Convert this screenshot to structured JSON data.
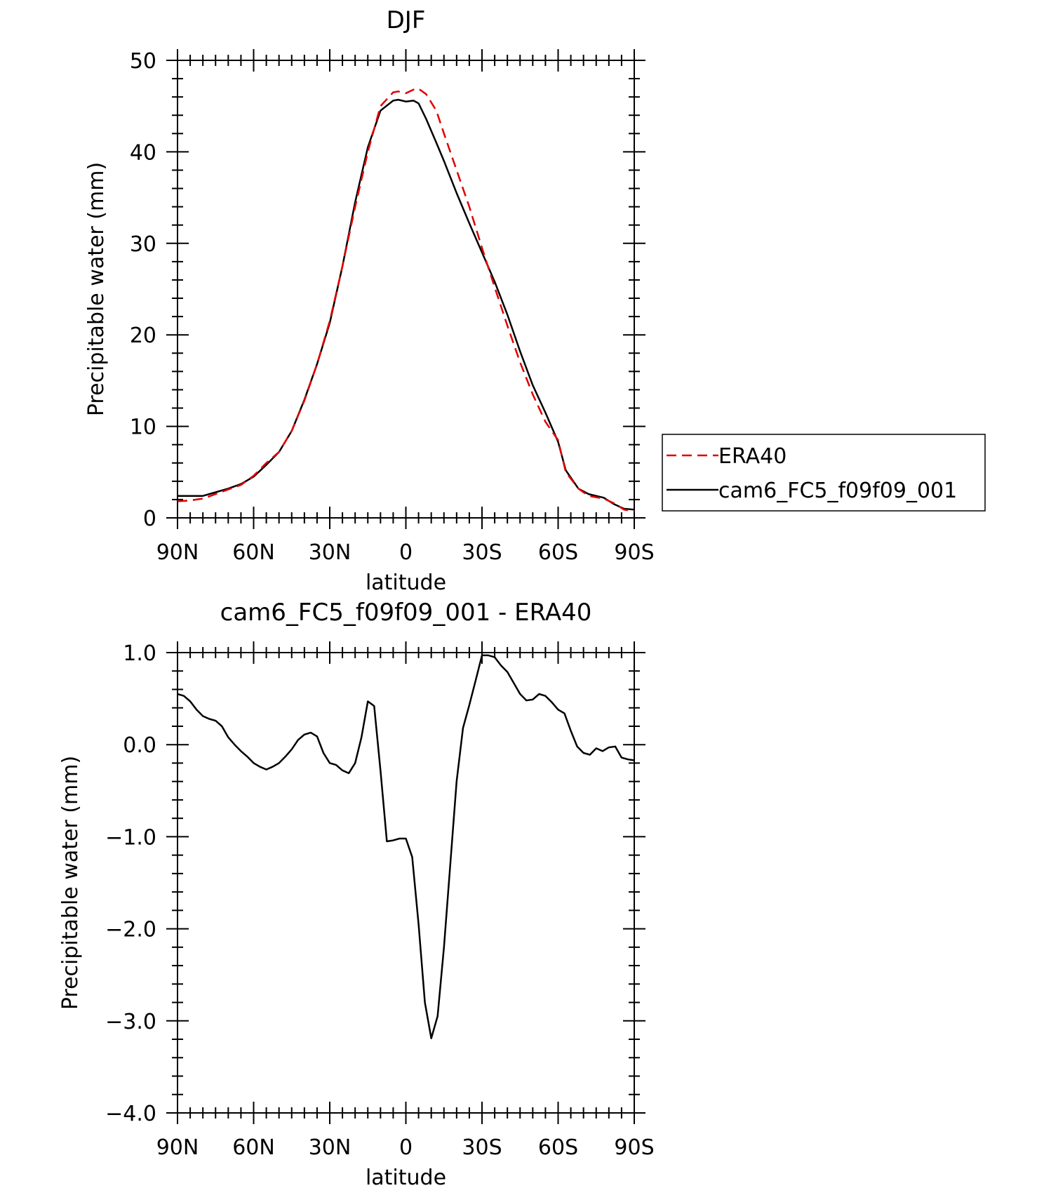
{
  "chart_data": [
    {
      "type": "line",
      "title": "DJF",
      "xlabel": "latitude",
      "ylabel": "Precipitable water (mm)",
      "xlim": [
        90,
        -90
      ],
      "ylim": [
        0,
        50
      ],
      "x_tick_values": [
        90,
        60,
        30,
        0,
        -30,
        -60,
        -90
      ],
      "x_tick_labels": [
        "90N",
        "60N",
        "30N",
        "0",
        "30S",
        "60S",
        "90S"
      ],
      "y_tick_values": [
        0,
        10,
        20,
        30,
        40,
        50
      ],
      "y_tick_labels": [
        "0",
        "10",
        "20",
        "30",
        "40",
        "50"
      ],
      "grid": false,
      "legend_position": "right",
      "series": [
        {
          "name": "ERA40",
          "color": "#e00000",
          "dash": true,
          "points": [
            [
              90,
              1.8
            ],
            [
              85,
              1.9
            ],
            [
              80,
              2.1
            ],
            [
              75,
              2.6
            ],
            [
              70,
              3.1
            ],
            [
              65,
              3.6
            ],
            [
              60,
              4.6
            ],
            [
              55,
              6.0
            ],
            [
              50,
              7.2
            ],
            [
              45,
              9.5
            ],
            [
              40,
              12.8
            ],
            [
              35,
              16.8
            ],
            [
              30,
              21.5
            ],
            [
              25,
              27.5
            ],
            [
              20,
              34.0
            ],
            [
              15,
              40.0
            ],
            [
              10,
              45.0
            ],
            [
              5,
              46.5
            ],
            [
              3,
              46.6
            ],
            [
              0,
              46.4
            ],
            [
              -3,
              46.8
            ],
            [
              -5,
              46.9
            ],
            [
              -8,
              46.3
            ],
            [
              -12,
              44.5
            ],
            [
              -15,
              42.0
            ],
            [
              -20,
              38.0
            ],
            [
              -25,
              34.0
            ],
            [
              -30,
              29.5
            ],
            [
              -35,
              25.2
            ],
            [
              -40,
              21.0
            ],
            [
              -45,
              17.0
            ],
            [
              -50,
              13.5
            ],
            [
              -55,
              10.5
            ],
            [
              -60,
              8.5
            ],
            [
              -63,
              5.0
            ],
            [
              -68,
              3.2
            ],
            [
              -72,
              2.4
            ],
            [
              -78,
              2.1
            ],
            [
              -82,
              1.6
            ],
            [
              -86,
              0.9
            ],
            [
              -90,
              0.7
            ]
          ]
        },
        {
          "name": "cam6_FC5_f09f09_001",
          "color": "#000000",
          "dash": false,
          "points": [
            [
              90,
              2.4
            ],
            [
              85,
              2.4
            ],
            [
              80,
              2.4
            ],
            [
              75,
              2.8
            ],
            [
              70,
              3.2
            ],
            [
              65,
              3.7
            ],
            [
              60,
              4.5
            ],
            [
              55,
              5.8
            ],
            [
              50,
              7.2
            ],
            [
              45,
              9.5
            ],
            [
              40,
              12.9
            ],
            [
              35,
              16.8
            ],
            [
              30,
              21.3
            ],
            [
              25,
              27.5
            ],
            [
              20,
              34.5
            ],
            [
              15,
              40.5
            ],
            [
              10,
              44.5
            ],
            [
              5,
              45.6
            ],
            [
              3,
              45.7
            ],
            [
              0,
              45.5
            ],
            [
              -3,
              45.6
            ],
            [
              -5,
              45.3
            ],
            [
              -8,
              43.6
            ],
            [
              -12,
              41.0
            ],
            [
              -15,
              39.0
            ],
            [
              -20,
              35.5
            ],
            [
              -25,
              32.2
            ],
            [
              -30,
              29.0
            ],
            [
              -35,
              25.8
            ],
            [
              -40,
              22.2
            ],
            [
              -45,
              18.2
            ],
            [
              -50,
              14.5
            ],
            [
              -55,
              11.5
            ],
            [
              -60,
              8.3
            ],
            [
              -63,
              5.2
            ],
            [
              -68,
              3.2
            ],
            [
              -72,
              2.6
            ],
            [
              -78,
              2.2
            ],
            [
              -82,
              1.5
            ],
            [
              -86,
              1.0
            ],
            [
              -90,
              0.9
            ]
          ]
        }
      ]
    },
    {
      "type": "line",
      "title": "cam6_FC5_f09f09_001 - ERA40",
      "xlabel": "latitude",
      "ylabel": "Precipitable water (mm)",
      "xlim": [
        90,
        -90
      ],
      "ylim": [
        -4,
        1
      ],
      "x_tick_values": [
        90,
        60,
        30,
        0,
        -30,
        -60,
        -90
      ],
      "x_tick_labels": [
        "90N",
        "60N",
        "30N",
        "0",
        "30S",
        "60S",
        "90S"
      ],
      "y_tick_values": [
        1,
        0,
        -1,
        -2,
        -3,
        -4
      ],
      "y_tick_labels": [
        "1.0",
        "0.0",
        "-1.0",
        "-2.0",
        "-3.0",
        "-4.0"
      ],
      "grid": false,
      "series": [
        {
          "color": "#000000",
          "dash": false,
          "points": [
            [
              90,
              0.55
            ],
            [
              87.5,
              0.53
            ],
            [
              85,
              0.47
            ],
            [
              82.5,
              0.38
            ],
            [
              80,
              0.31
            ],
            [
              77.5,
              0.28
            ],
            [
              75,
              0.26
            ],
            [
              72.5,
              0.2
            ],
            [
              70,
              0.08
            ],
            [
              67.5,
              0.0
            ],
            [
              65,
              -0.07
            ],
            [
              62.5,
              -0.13
            ],
            [
              60,
              -0.2
            ],
            [
              57.5,
              -0.24
            ],
            [
              55,
              -0.27
            ],
            [
              52.5,
              -0.24
            ],
            [
              50,
              -0.2
            ],
            [
              47.5,
              -0.13
            ],
            [
              45,
              -0.05
            ],
            [
              42.5,
              0.05
            ],
            [
              40,
              0.11
            ],
            [
              37.5,
              0.13
            ],
            [
              35,
              0.09
            ],
            [
              32.5,
              -0.09
            ],
            [
              30,
              -0.2
            ],
            [
              27.5,
              -0.22
            ],
            [
              25,
              -0.28
            ],
            [
              22.5,
              -0.31
            ],
            [
              20,
              -0.2
            ],
            [
              17.5,
              0.08
            ],
            [
              15,
              0.47
            ],
            [
              12.5,
              0.42
            ],
            [
              10,
              -0.28
            ],
            [
              7.5,
              -1.05
            ],
            [
              5,
              -1.04
            ],
            [
              2.5,
              -1.02
            ],
            [
              0,
              -1.02
            ],
            [
              -2.5,
              -1.22
            ],
            [
              -5,
              -1.95
            ],
            [
              -7.5,
              -2.8
            ],
            [
              -10,
              -3.19
            ],
            [
              -12.5,
              -2.95
            ],
            [
              -15,
              -2.2
            ],
            [
              -17.5,
              -1.3
            ],
            [
              -20,
              -0.4
            ],
            [
              -22.5,
              0.18
            ],
            [
              -25,
              0.43
            ],
            [
              -27.5,
              0.7
            ],
            [
              -30,
              0.97
            ],
            [
              -32.5,
              0.97
            ],
            [
              -35,
              0.95
            ],
            [
              -37.5,
              0.86
            ],
            [
              -40,
              0.79
            ],
            [
              -42.5,
              0.67
            ],
            [
              -45,
              0.55
            ],
            [
              -47.5,
              0.48
            ],
            [
              -50,
              0.49
            ],
            [
              -52.5,
              0.55
            ],
            [
              -55,
              0.53
            ],
            [
              -57.5,
              0.46
            ],
            [
              -60,
              0.38
            ],
            [
              -62.5,
              0.34
            ],
            [
              -65,
              0.15
            ],
            [
              -67.5,
              -0.02
            ],
            [
              -70,
              -0.09
            ],
            [
              -72.5,
              -0.11
            ],
            [
              -75,
              -0.04
            ],
            [
              -77.5,
              -0.07
            ],
            [
              -80,
              -0.03
            ],
            [
              -82.5,
              -0.02
            ],
            [
              -85,
              -0.14
            ],
            [
              -87.5,
              -0.16
            ],
            [
              -90,
              -0.17
            ]
          ]
        }
      ]
    }
  ],
  "legend": {
    "items": [
      {
        "label": "ERA40",
        "color": "#e00000",
        "dash": true
      },
      {
        "label": "cam6_FC5_f09f09_001",
        "color": "#000000",
        "dash": false
      }
    ]
  }
}
